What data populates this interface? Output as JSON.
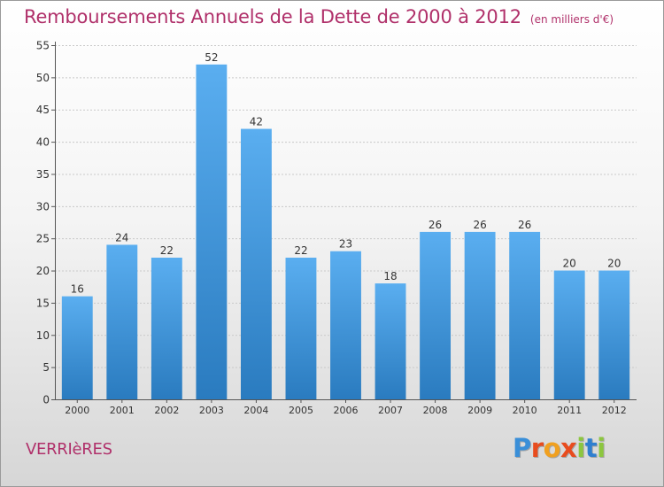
{
  "title": "Remboursements Annuels de la Dette de 2000 à 2012",
  "unit_note": "(en milliers d'€)",
  "commune": "VERRIèRES",
  "logo": {
    "text": "Proxiti",
    "letter_colors": [
      "#3a8fd8",
      "#e84c1e",
      "#f0a020",
      "#e84c1e",
      "#8cc63f",
      "#2f7fd0",
      "#8cc63f"
    ]
  },
  "colors": {
    "bar_light": "#5aaef0",
    "bar_dark": "#2a7bbf",
    "title": "#b0306a"
  },
  "chart_data": {
    "type": "bar",
    "categories": [
      "2000",
      "2001",
      "2002",
      "2003",
      "2004",
      "2005",
      "2006",
      "2007",
      "2008",
      "2009",
      "2010",
      "2011",
      "2012"
    ],
    "values": [
      16,
      24,
      22,
      52,
      42,
      22,
      23,
      18,
      26,
      26,
      26,
      20,
      20
    ],
    "ylim": [
      0,
      55
    ],
    "yticks": [
      0,
      5,
      10,
      15,
      20,
      25,
      30,
      35,
      40,
      45,
      50,
      55
    ],
    "grid": true,
    "data_labels": true
  }
}
